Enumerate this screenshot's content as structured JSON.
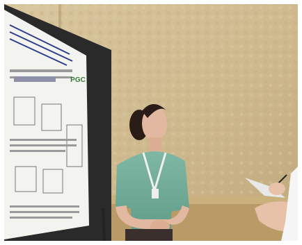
{
  "poster": {
    "logo": "PGC"
  }
}
